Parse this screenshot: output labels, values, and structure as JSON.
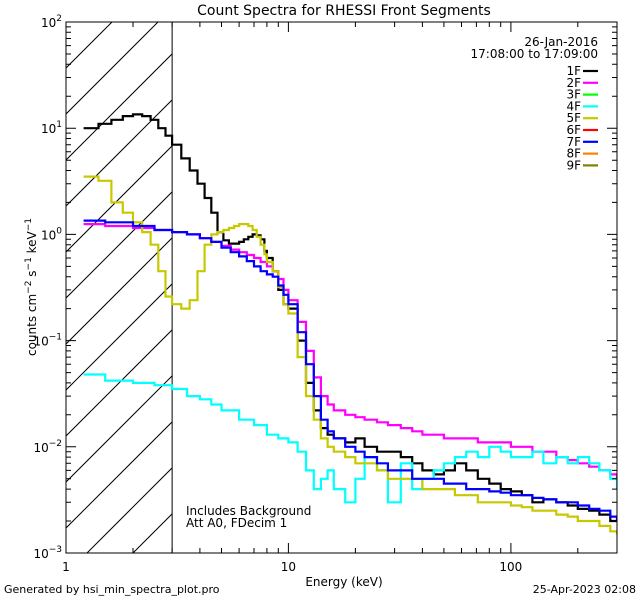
{
  "chart_data": {
    "type": "line",
    "title": "Count Spectra for RHESSI Front Segments",
    "xlabel": "Energy (keV)",
    "ylabel_base": "counts cm",
    "ylabel_sup1": "−2",
    "ylabel_mid": " s",
    "ylabel_sup2": "−1",
    "ylabel_end": " keV",
    "ylabel_sup3": "−1",
    "xscale": "log",
    "yscale": "log",
    "xlim": [
      1,
      300
    ],
    "ylim": [
      0.001,
      100
    ],
    "x_ticks": [
      {
        "value": 1,
        "label": "1"
      },
      {
        "value": 10,
        "label": "10"
      },
      {
        "value": 100,
        "label": "100"
      }
    ],
    "y_ticks": [
      {
        "value": 0.001,
        "base": "10",
        "exp": "−3"
      },
      {
        "value": 0.01,
        "base": "10",
        "exp": "−2"
      },
      {
        "value": 0.1,
        "base": "10",
        "exp": "−1"
      },
      {
        "value": 1,
        "base": "10",
        "exp": "0"
      },
      {
        "value": 10,
        "base": "10",
        "exp": "1"
      },
      {
        "value": 100,
        "base": "10",
        "exp": "2"
      }
    ],
    "date": "26-Jan-2016",
    "time_range": "17:08:00 to 17:09:00",
    "shaded_region": [
      1,
      3
    ],
    "annotation_lines": [
      "Includes Background",
      "Att A0, FDecim 1"
    ],
    "legend": [
      {
        "label": "1F",
        "color": "#000000"
      },
      {
        "label": "2F",
        "color": "#ff00ff"
      },
      {
        "label": "3F",
        "color": "#00ff00"
      },
      {
        "label": "4F",
        "color": "#00ffff"
      },
      {
        "label": "5F",
        "color": "#c8c800"
      },
      {
        "label": "6F",
        "color": "#ff0000"
      },
      {
        "label": "7F",
        "color": "#0000ff"
      },
      {
        "label": "8F",
        "color": "#ff8000"
      },
      {
        "label": "9F",
        "color": "#808000"
      }
    ],
    "series": [
      {
        "name": "1F",
        "color": "#000000",
        "x": [
          1.2,
          1.4,
          1.6,
          1.8,
          2.0,
          2.2,
          2.4,
          2.6,
          2.8,
          3.0,
          3.3,
          3.6,
          3.9,
          4.2,
          4.5,
          4.8,
          5.1,
          5.4,
          5.7,
          6.0,
          6.3,
          6.6,
          6.9,
          7.2,
          7.5,
          7.8,
          8.0,
          8.5,
          9.0,
          9.5,
          10,
          11,
          12,
          13,
          14,
          15,
          16,
          18,
          20,
          22,
          25,
          28,
          32,
          36,
          40,
          45,
          50,
          56,
          63,
          71,
          80,
          90,
          100,
          112,
          125,
          140,
          160,
          180,
          200,
          225,
          250,
          280,
          300
        ],
        "y": [
          10,
          11,
          12,
          13,
          13.5,
          13,
          12,
          10,
          8.5,
          7,
          5.2,
          4,
          3,
          2.2,
          1.6,
          1.05,
          0.88,
          0.82,
          0.82,
          0.85,
          0.9,
          0.95,
          1.0,
          0.98,
          0.9,
          0.7,
          0.6,
          0.45,
          0.3,
          0.22,
          0.2,
          0.1,
          0.04,
          0.022,
          0.015,
          0.013,
          0.012,
          0.011,
          0.012,
          0.01,
          0.009,
          0.009,
          0.008,
          0.007,
          0.006,
          0.0055,
          0.006,
          0.007,
          0.006,
          0.005,
          0.0045,
          0.004,
          0.0038,
          0.0035,
          0.003,
          0.0032,
          0.003,
          0.0028,
          0.0026,
          0.0025,
          0.0023,
          0.002,
          0.002
        ]
      },
      {
        "name": "2F",
        "color": "#ff00ff",
        "x": [
          1.2,
          1.5,
          2.0,
          2.5,
          3.0,
          3.5,
          4.0,
          4.5,
          5.0,
          5.5,
          6.0,
          6.5,
          7.0,
          7.5,
          8.0,
          8.5,
          9.0,
          9.5,
          10,
          11,
          12,
          13,
          14,
          15,
          16,
          18,
          20,
          22,
          25,
          28,
          32,
          36,
          40,
          45,
          50,
          56,
          63,
          71,
          80,
          90,
          100,
          112,
          125,
          140,
          160,
          180,
          200,
          225,
          250,
          280,
          300
        ],
        "y": [
          1.25,
          1.2,
          1.15,
          1.1,
          1.05,
          1.0,
          0.92,
          0.85,
          0.78,
          0.72,
          0.68,
          0.64,
          0.6,
          0.55,
          0.5,
          0.45,
          0.38,
          0.3,
          0.24,
          0.15,
          0.08,
          0.045,
          0.03,
          0.025,
          0.022,
          0.02,
          0.019,
          0.018,
          0.017,
          0.016,
          0.015,
          0.014,
          0.013,
          0.013,
          0.012,
          0.012,
          0.012,
          0.011,
          0.011,
          0.011,
          0.01,
          0.01,
          0.009,
          0.009,
          0.008,
          0.0075,
          0.007,
          0.0065,
          0.006,
          0.0055,
          0.005
        ]
      },
      {
        "name": "4F",
        "color": "#00ffff",
        "x": [
          1.2,
          1.5,
          2.0,
          2.5,
          3.0,
          3.5,
          4.0,
          4.5,
          5.0,
          6.0,
          7.0,
          8.0,
          9.0,
          10,
          11,
          12,
          13,
          14,
          15,
          16,
          18,
          20,
          22,
          25,
          28,
          32,
          36,
          40,
          45,
          50,
          56,
          63,
          71,
          80,
          90,
          100,
          112,
          125,
          140,
          160,
          180,
          200,
          225,
          250,
          280,
          300
        ],
        "y": [
          0.048,
          0.042,
          0.04,
          0.038,
          0.035,
          0.03,
          0.028,
          0.025,
          0.022,
          0.018,
          0.016,
          0.013,
          0.012,
          0.011,
          0.009,
          0.006,
          0.004,
          0.005,
          0.006,
          0.004,
          0.003,
          0.005,
          0.008,
          0.006,
          0.003,
          0.007,
          0.004,
          0.005,
          0.006,
          0.007,
          0.008,
          0.009,
          0.008,
          0.01,
          0.009,
          0.008,
          0.008,
          0.009,
          0.007,
          0.008,
          0.007,
          0.008,
          0.007,
          0.006,
          0.005,
          0.004
        ]
      },
      {
        "name": "5F",
        "color": "#c8c800",
        "x": [
          1.2,
          1.4,
          1.6,
          1.8,
          2.0,
          2.2,
          2.4,
          2.6,
          2.8,
          3.0,
          3.3,
          3.6,
          3.9,
          4.2,
          4.5,
          4.8,
          5.1,
          5.4,
          5.7,
          6.0,
          6.3,
          6.6,
          6.9,
          7.2,
          7.5,
          7.8,
          8.0,
          8.5,
          9.0,
          9.5,
          10,
          11,
          12,
          13,
          14,
          15,
          16,
          18,
          20,
          22,
          25,
          28,
          32,
          36,
          40,
          45,
          50,
          56,
          63,
          71,
          80,
          90,
          100,
          112,
          125,
          140,
          160,
          180,
          200,
          225,
          250,
          280,
          300
        ],
        "y": [
          3.5,
          3.2,
          2.0,
          1.6,
          1.3,
          1.05,
          0.8,
          0.45,
          0.26,
          0.22,
          0.2,
          0.24,
          0.45,
          0.8,
          1.0,
          1.05,
          1.1,
          1.15,
          1.2,
          1.25,
          1.25,
          1.2,
          1.1,
          0.95,
          0.8,
          0.65,
          0.55,
          0.45,
          0.32,
          0.22,
          0.18,
          0.07,
          0.03,
          0.018,
          0.012,
          0.01,
          0.009,
          0.008,
          0.007,
          0.007,
          0.006,
          0.005,
          0.005,
          0.005,
          0.004,
          0.004,
          0.004,
          0.0035,
          0.0035,
          0.003,
          0.003,
          0.003,
          0.0028,
          0.0027,
          0.0025,
          0.0025,
          0.0023,
          0.0022,
          0.002,
          0.002,
          0.0018,
          0.0016,
          0.0015
        ]
      },
      {
        "name": "7F",
        "color": "#0000ff",
        "x": [
          1.2,
          1.5,
          2.0,
          2.5,
          3.0,
          3.5,
          4.0,
          4.5,
          5.0,
          5.5,
          6.0,
          6.5,
          7.0,
          7.5,
          8.0,
          8.5,
          9.0,
          9.5,
          10,
          11,
          12,
          13,
          14,
          15,
          16,
          18,
          20,
          22,
          25,
          28,
          32,
          36,
          40,
          45,
          50,
          56,
          63,
          71,
          80,
          90,
          100,
          112,
          125,
          140,
          160,
          180,
          200,
          225,
          250,
          280,
          300
        ],
        "y": [
          1.35,
          1.3,
          1.2,
          1.1,
          1.05,
          1.0,
          0.92,
          0.85,
          0.75,
          0.68,
          0.62,
          0.56,
          0.5,
          0.45,
          0.42,
          0.4,
          0.33,
          0.27,
          0.22,
          0.12,
          0.06,
          0.03,
          0.018,
          0.014,
          0.012,
          0.01,
          0.009,
          0.008,
          0.007,
          0.006,
          0.006,
          0.005,
          0.005,
          0.005,
          0.0045,
          0.0045,
          0.004,
          0.004,
          0.0038,
          0.0037,
          0.0035,
          0.0035,
          0.0033,
          0.0032,
          0.003,
          0.003,
          0.0028,
          0.0026,
          0.0025,
          0.0022,
          0.002
        ]
      }
    ]
  },
  "footer": {
    "left": "Generated by hsi_min_spectra_plot.pro",
    "right": "25-Apr-2023 02:08"
  }
}
